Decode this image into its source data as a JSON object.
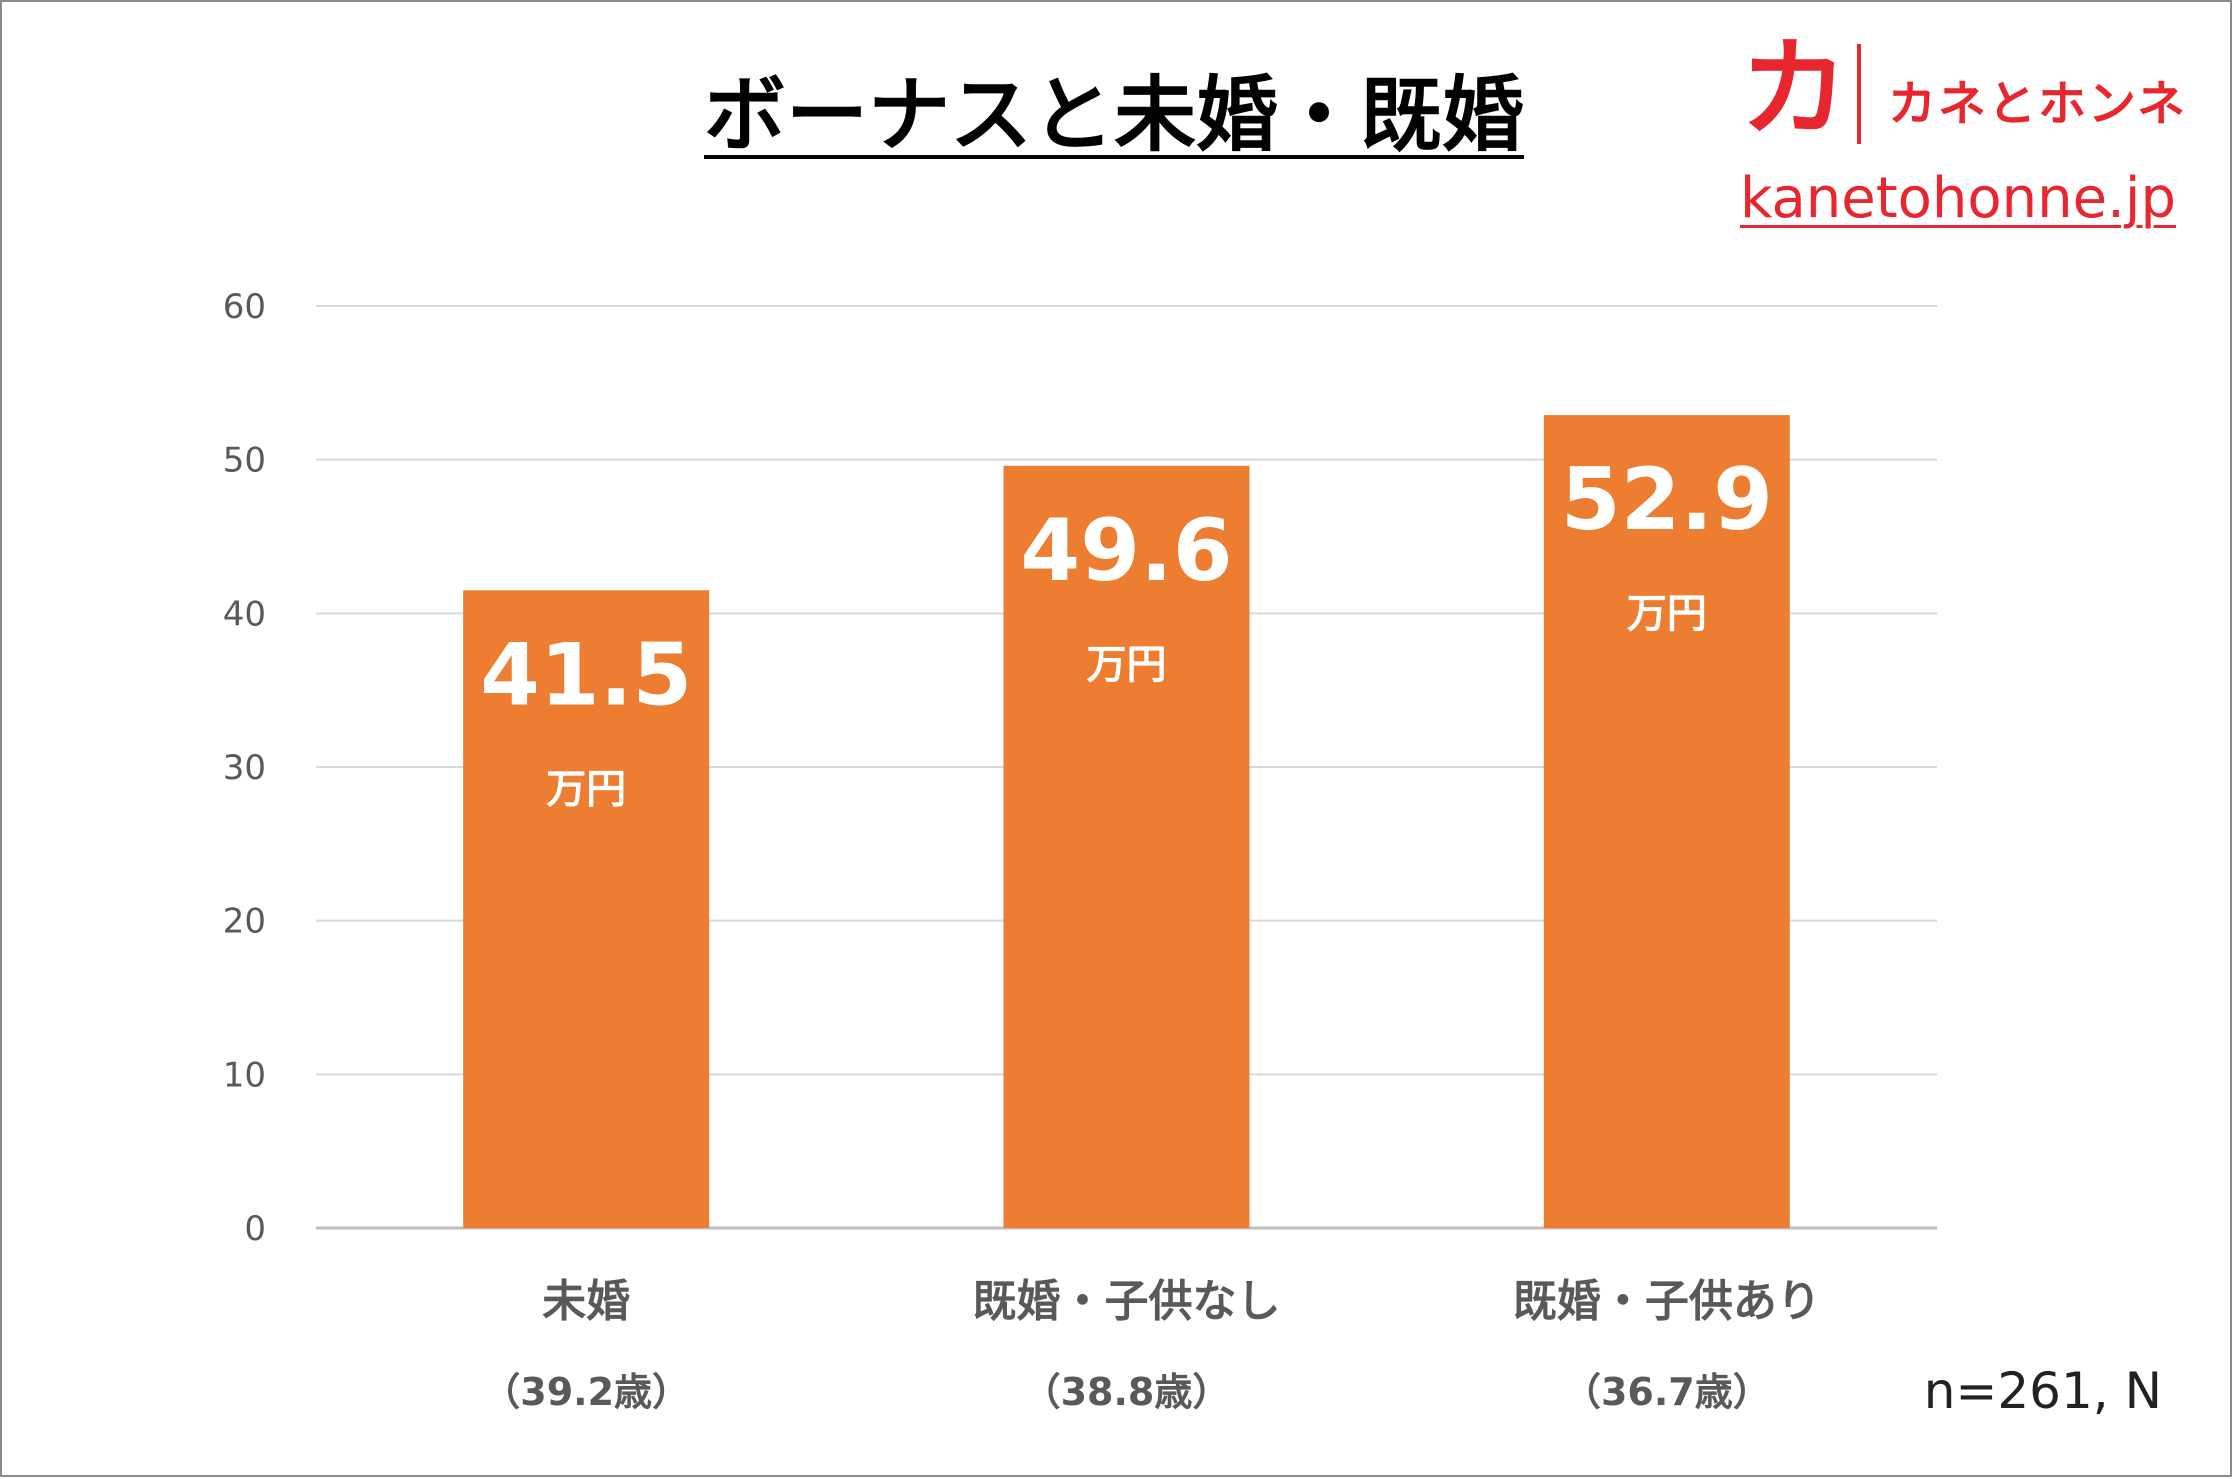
{
  "brand": {
    "logo_mark": "カ",
    "logo_text": "カネとホンネ",
    "url": "kanetohonne.jp",
    "color": "#e8262e"
  },
  "footer": {
    "sample_note": "n=261, N"
  },
  "chart_data": {
    "type": "bar",
    "title": "ボーナスと未婚・既婚",
    "categories": [
      "未婚",
      "既婚・子供なし",
      "既婚・子供あり"
    ],
    "category_notes": [
      "（39.2歳）",
      "（38.8歳）",
      "（36.7歳）"
    ],
    "values": [
      41.5,
      49.6,
      52.9
    ],
    "value_unit": "万円",
    "ylim": [
      0,
      60
    ],
    "yticks": [
      0,
      10,
      20,
      30,
      40,
      50,
      60
    ],
    "grid": true,
    "bar_color": "#ed7d31",
    "xlabel": "",
    "ylabel": ""
  }
}
